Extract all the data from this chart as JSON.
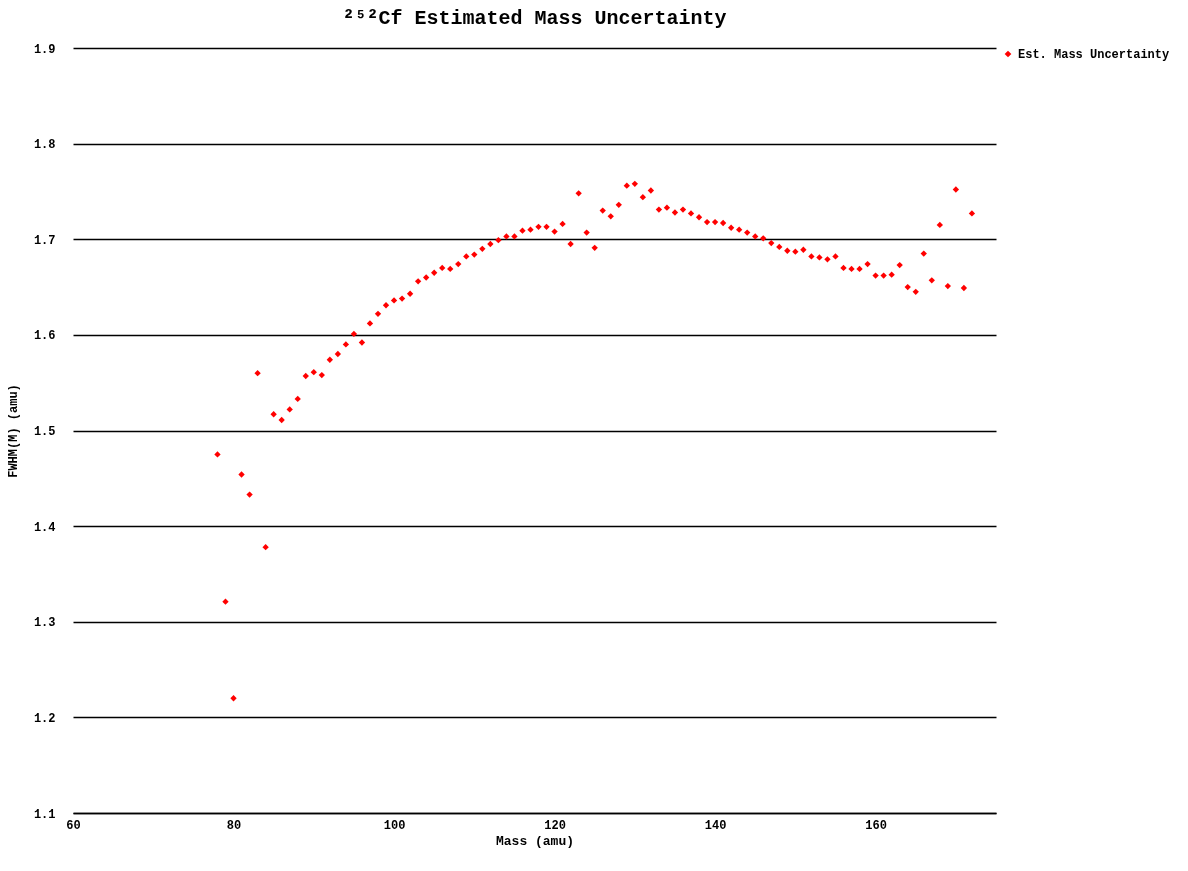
{
  "chart_data": {
    "type": "scatter",
    "title": "²⁵²Cf Estimated Mass Uncertainty",
    "xlabel": "Mass (amu)",
    "ylabel": "FWHM(M)  (amu)",
    "x": [
      78,
      79,
      80,
      81,
      82,
      83,
      84,
      85,
      86,
      87,
      88,
      89,
      90,
      91,
      92,
      93,
      94,
      95,
      96,
      97,
      98,
      99,
      100,
      101,
      102,
      103,
      104,
      105,
      106,
      107,
      108,
      109,
      110,
      111,
      112,
      113,
      114,
      115,
      116,
      117,
      118,
      119,
      120,
      121,
      122,
      123,
      124,
      125,
      126,
      127,
      128,
      129,
      130,
      131,
      132,
      133,
      134,
      135,
      136,
      137,
      138,
      139,
      140,
      141,
      142,
      143,
      144,
      145,
      146,
      147,
      148,
      149,
      150,
      151,
      152,
      153,
      154,
      155,
      156,
      157,
      158,
      159,
      160,
      161,
      162,
      163,
      164,
      165,
      166,
      167,
      168,
      169,
      170,
      171,
      172
    ],
    "series": [
      {
        "name": "Est. Mass Uncertainty",
        "color": "#ff0000",
        "values": [
          1.475,
          1.321,
          1.22,
          1.454,
          1.433,
          1.56,
          1.378,
          1.517,
          1.511,
          1.522,
          1.533,
          1.557,
          1.561,
          1.558,
          1.574,
          1.58,
          1.59,
          1.601,
          1.592,
          1.612,
          1.622,
          1.631,
          1.636,
          1.638,
          1.643,
          1.656,
          1.66,
          1.665,
          1.67,
          1.669,
          1.674,
          1.682,
          1.684,
          1.69,
          1.695,
          1.699,
          1.703,
          1.703,
          1.709,
          1.71,
          1.713,
          1.713,
          1.708,
          1.716,
          1.695,
          1.748,
          1.707,
          1.691,
          1.73,
          1.724,
          1.736,
          1.756,
          1.758,
          1.744,
          1.751,
          1.731,
          1.733,
          1.728,
          1.731,
          1.727,
          1.723,
          1.718,
          1.718,
          1.717,
          1.712,
          1.71,
          1.707,
          1.703,
          1.701,
          1.696,
          1.692,
          1.688,
          1.687,
          1.689,
          1.682,
          1.681,
          1.679,
          1.682,
          1.67,
          1.669,
          1.669,
          1.674,
          1.662,
          1.662,
          1.663,
          1.673,
          1.65,
          1.645,
          1.685,
          1.657,
          1.715,
          1.651,
          1.752,
          1.649,
          1.727
        ]
      }
    ],
    "xlim": [
      60,
      175
    ],
    "xticks": [
      60,
      80,
      100,
      120,
      140,
      160
    ],
    "ylim": [
      1.1,
      1.9
    ],
    "yticks": [
      1.1,
      1.2,
      1.3,
      1.4,
      1.5,
      1.6,
      1.7,
      1.8,
      1.9
    ],
    "grid": "y",
    "legend": "right",
    "marker": "diamond"
  }
}
